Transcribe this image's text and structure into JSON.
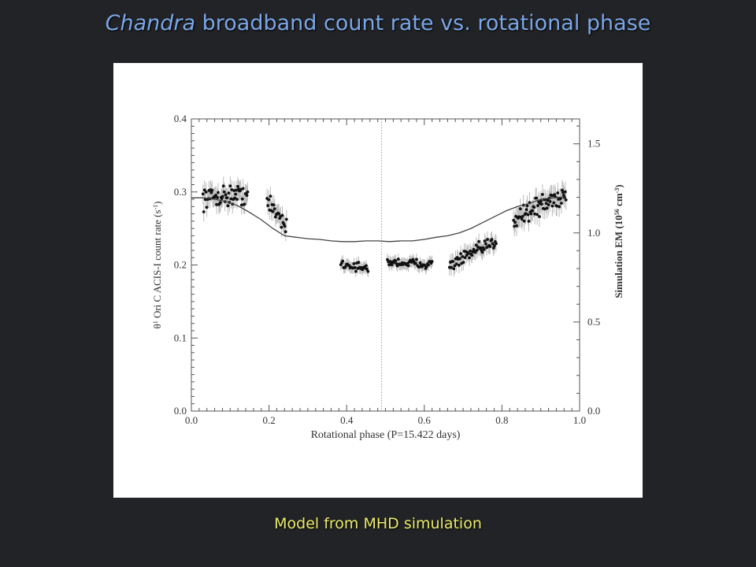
{
  "slide": {
    "title_italic": "Chandra",
    "title_rest": " broadband count rate vs. rotational phase",
    "caption": "Model from MHD simulation"
  },
  "chart_data": {
    "type": "scatter",
    "xlabel": "Rotational phase (P=15.422 days)",
    "ylabel": {
      "pre": "θ",
      "sup": "1",
      "mid": " Ori C ACIS-I count rate (s",
      "sup2": "-1",
      "post": ")"
    },
    "y2label": {
      "pre": "Simulation EM (10",
      "sup": "56",
      "mid": " cm",
      "sup2": "-3",
      "post": ")"
    },
    "xlim": [
      0,
      1
    ],
    "ylim": [
      0,
      0.4
    ],
    "y2lim": [
      0,
      1.64
    ],
    "x_ticks": [
      "0.0",
      "0.2",
      "0.4",
      "0.6",
      "0.8",
      "1.0"
    ],
    "y_ticks": [
      "0.0",
      "0.1",
      "0.2",
      "0.3",
      "0.4"
    ],
    "y2_ticks": [
      "0.0",
      "0.5",
      "1.0",
      "1.5"
    ],
    "vline_x": 0.49,
    "colors": {
      "points": "#111111",
      "errorbars": "#bbbbbb",
      "model": "#444444",
      "axes": "#555555"
    },
    "series": [
      {
        "style": "points-with-errorbars",
        "segments": [
          {
            "x_range": [
              0.03,
              0.145
            ],
            "n": 60,
            "y_start": 0.292,
            "y_end": 0.297,
            "scatter": 0.012,
            "err": 0.013
          },
          {
            "x_range": [
              0.195,
              0.245
            ],
            "n": 24,
            "y_start": 0.285,
            "y_end": 0.255,
            "scatter": 0.012,
            "err": 0.013
          },
          {
            "x_range": [
              0.385,
              0.455
            ],
            "n": 30,
            "y_start": 0.202,
            "y_end": 0.194,
            "scatter": 0.005,
            "err": 0.008
          },
          {
            "x_range": [
              0.505,
              0.62
            ],
            "n": 50,
            "y_start": 0.204,
            "y_end": 0.201,
            "scatter": 0.005,
            "err": 0.008
          },
          {
            "x_range": [
              0.665,
              0.785
            ],
            "n": 55,
            "y_start": 0.2,
            "y_end": 0.232,
            "scatter": 0.008,
            "err": 0.011
          },
          {
            "x_range": [
              0.83,
              0.965
            ],
            "n": 70,
            "y_start": 0.265,
            "y_end": 0.297,
            "scatter": 0.013,
            "err": 0.014
          }
        ]
      },
      {
        "style": "model-line",
        "x": [
          0.0,
          0.03,
          0.06,
          0.09,
          0.12,
          0.15,
          0.18,
          0.21,
          0.24,
          0.27,
          0.3,
          0.33,
          0.36,
          0.39,
          0.42,
          0.45,
          0.48,
          0.51,
          0.54,
          0.57,
          0.6,
          0.63,
          0.66,
          0.69,
          0.72,
          0.75,
          0.78,
          0.81,
          0.84,
          0.87,
          0.9,
          0.93,
          0.96
        ],
        "y": [
          0.292,
          0.292,
          0.29,
          0.287,
          0.281,
          0.272,
          0.262,
          0.25,
          0.24,
          0.238,
          0.236,
          0.235,
          0.233,
          0.232,
          0.232,
          0.233,
          0.233,
          0.232,
          0.233,
          0.233,
          0.235,
          0.238,
          0.24,
          0.244,
          0.25,
          0.258,
          0.266,
          0.274,
          0.28,
          0.284,
          0.29,
          0.292,
          0.293
        ]
      }
    ]
  }
}
